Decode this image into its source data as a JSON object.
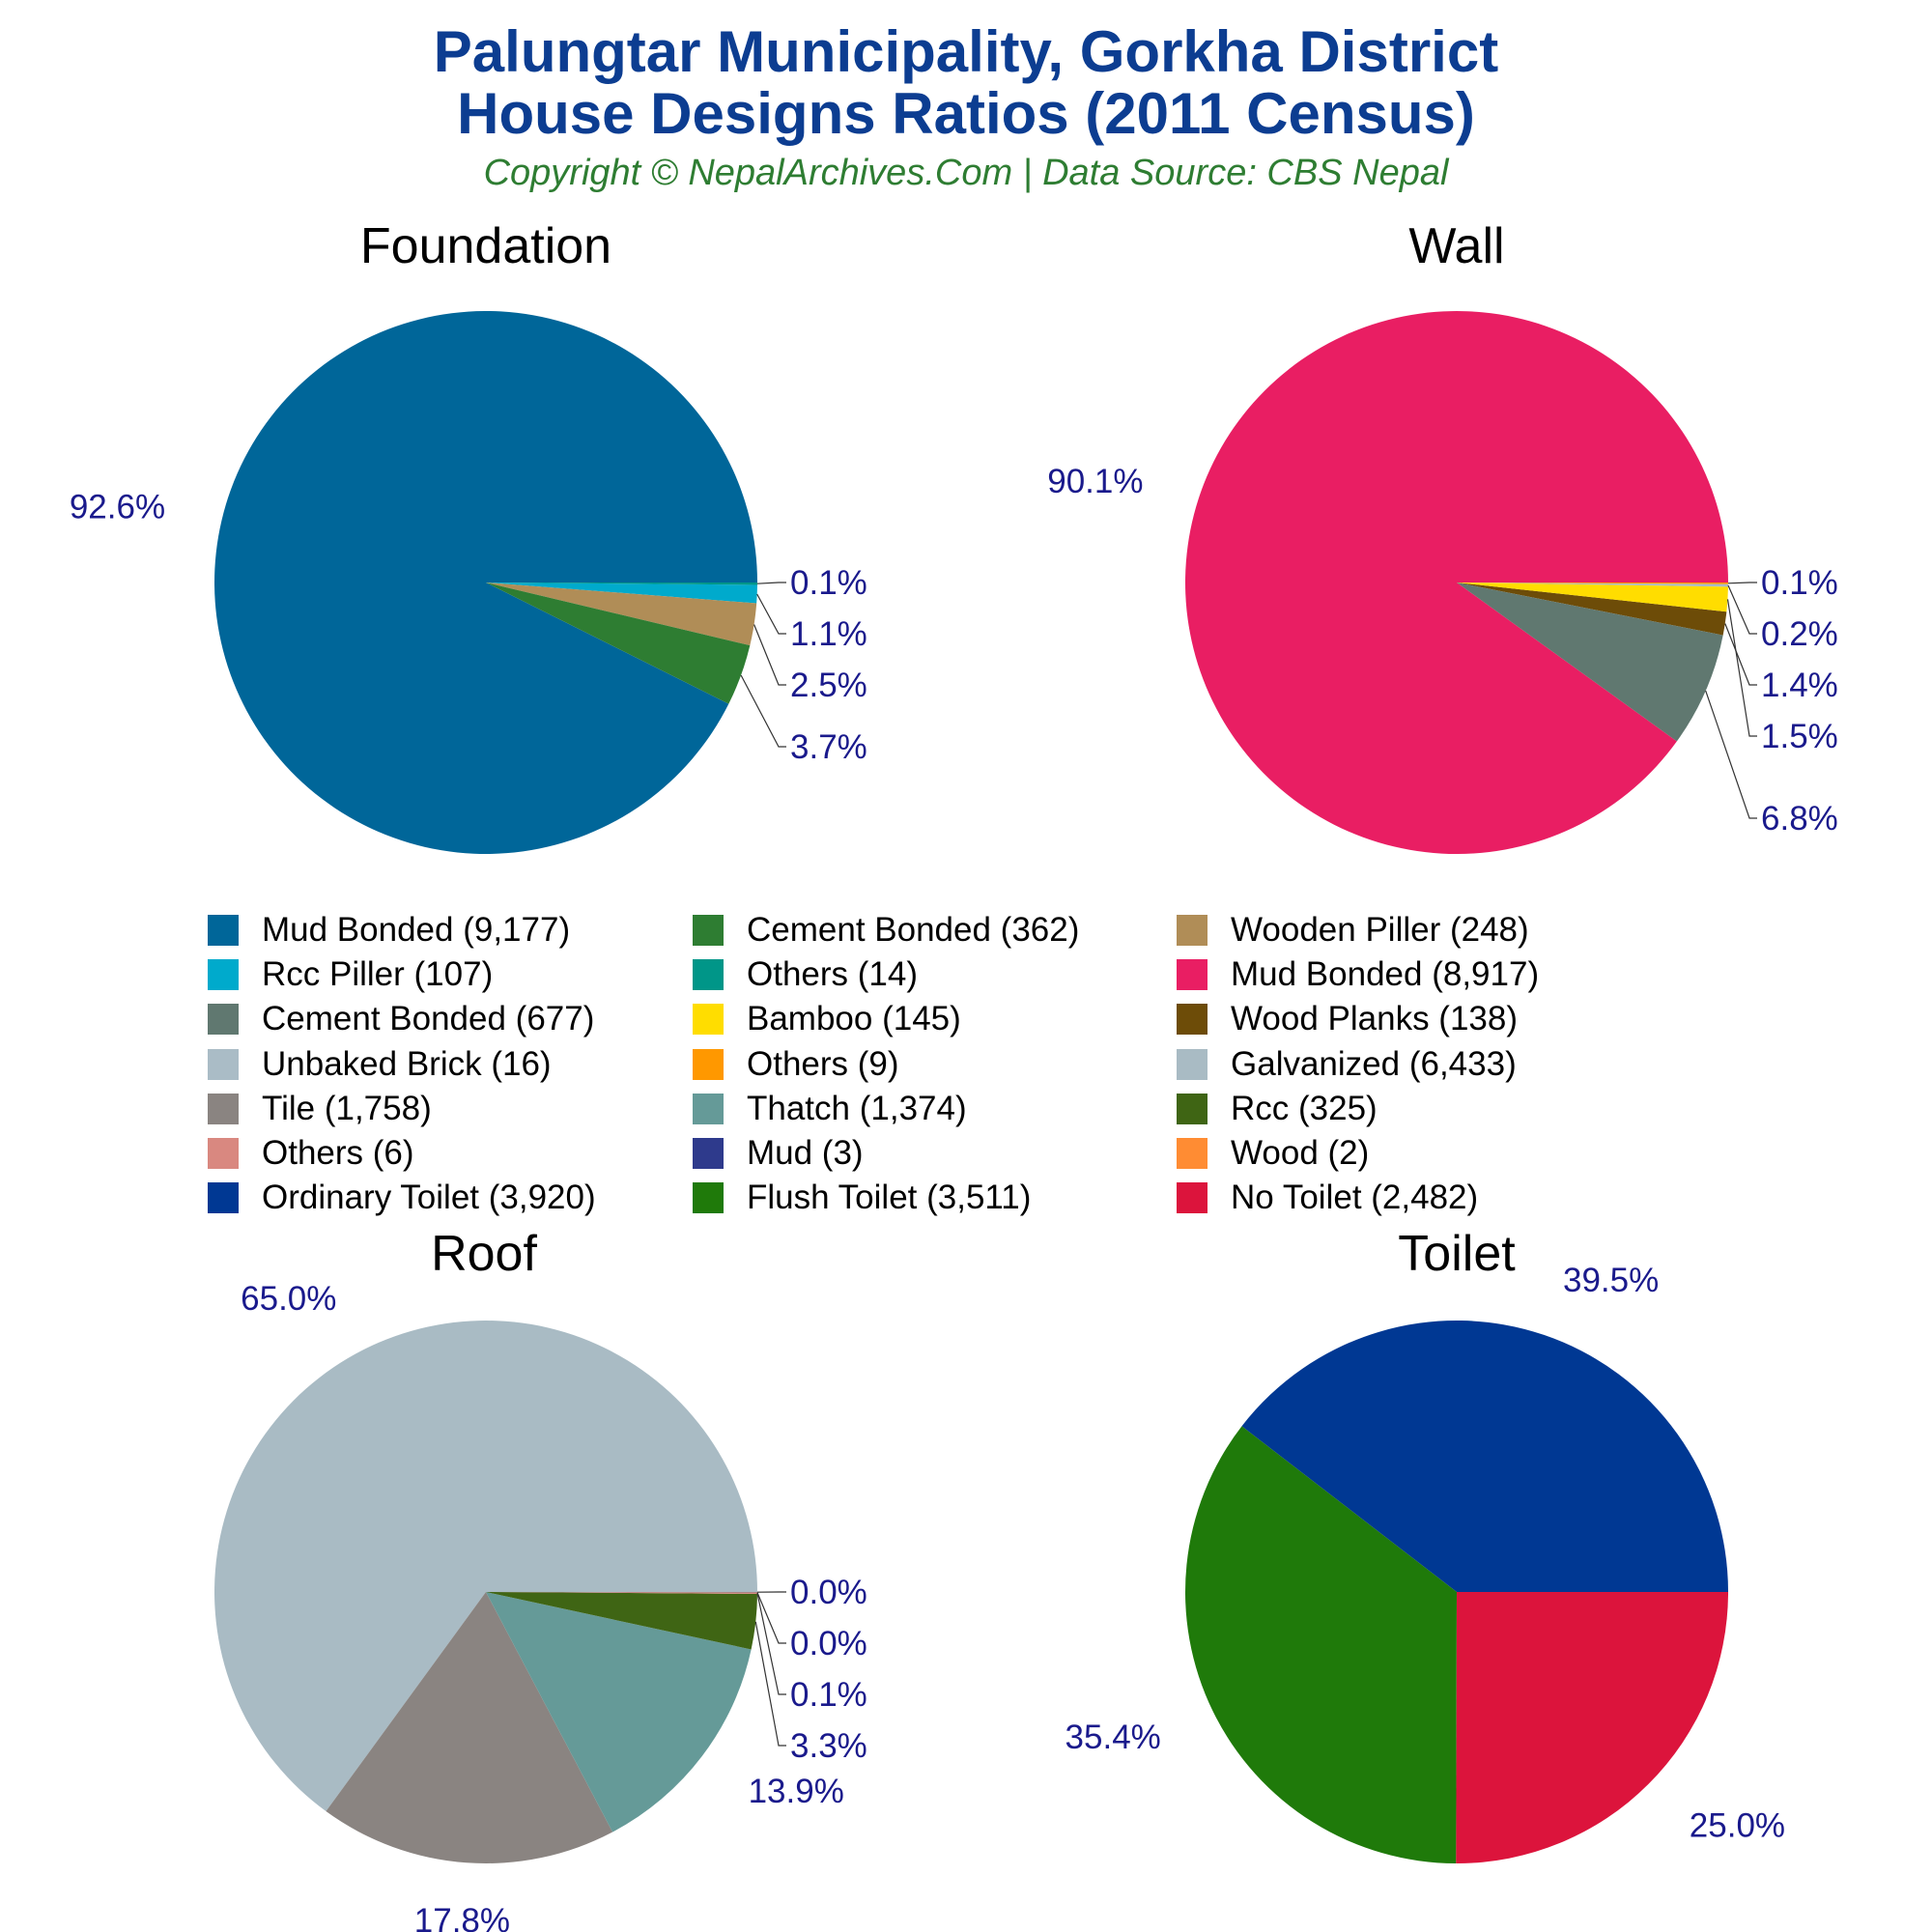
{
  "header": {
    "title_line1": "Palungtar Municipality, Gorkha District",
    "title_line2": "House Designs Ratios (2011 Census)",
    "subtitle": "Copyright © NepalArchives.Com | Data Source: CBS Nepal"
  },
  "chart_data": [
    {
      "type": "pie",
      "title": "Foundation",
      "slices": [
        {
          "label": "Mud Bonded",
          "value": 9177,
          "color": "#006699",
          "pct": "92.6%"
        },
        {
          "label": "Rcc Piller",
          "value": 107,
          "color": "#00aacc",
          "pct": "1.1%"
        },
        {
          "label": "Wooden Piller",
          "value": 248,
          "color": "#b08d57",
          "pct": "2.5%"
        },
        {
          "label": "Cement Bonded",
          "value": 362,
          "color": "#2e7d32",
          "pct": "3.7%"
        },
        {
          "label": "Others",
          "value": 14,
          "color": "#009688",
          "pct": "0.1%"
        }
      ]
    },
    {
      "type": "pie",
      "title": "Wall",
      "slices": [
        {
          "label": "Mud Bonded",
          "value": 8917,
          "color": "#e91e63",
          "pct": "90.1%"
        },
        {
          "label": "Unbaked Brick",
          "value": 16,
          "color": "#aabcc6",
          "pct": "0.2%"
        },
        {
          "label": "Wood Planks",
          "value": 138,
          "color": "#6d4c08",
          "pct": "1.4%"
        },
        {
          "label": "Bamboo",
          "value": 145,
          "color": "#ffdd00",
          "pct": "1.5%"
        },
        {
          "label": "Cement Bonded",
          "value": 677,
          "color": "#607870",
          "pct": "6.8%"
        },
        {
          "label": "Others",
          "value": 9,
          "color": "#ff9800",
          "pct": "0.1%"
        }
      ]
    },
    {
      "type": "pie",
      "title": "Roof",
      "slices": [
        {
          "label": "Galvanized",
          "value": 6433,
          "color": "#a9bbc4",
          "pct": "65.0%"
        },
        {
          "label": "Tile",
          "value": 1758,
          "color": "#8a8481",
          "pct": "17.8%"
        },
        {
          "label": "Thatch",
          "value": 1374,
          "color": "#659a98",
          "pct": "13.9%"
        },
        {
          "label": "Rcc",
          "value": 325,
          "color": "#3f6514",
          "pct": "3.3%"
        },
        {
          "label": "Others",
          "value": 6,
          "color": "#d98880",
          "pct": "0.1%"
        },
        {
          "label": "Mud",
          "value": 3,
          "color": "#2e3a8c",
          "pct": "0.0%"
        },
        {
          "label": "Wood",
          "value": 2,
          "color": "#ff8c33",
          "pct": "0.0%"
        }
      ]
    },
    {
      "type": "pie",
      "title": "Toilet",
      "slices": [
        {
          "label": "Ordinary Toilet",
          "value": 3920,
          "color": "#003893",
          "pct": "39.5%"
        },
        {
          "label": "Flush Toilet",
          "value": 3511,
          "color": "#1f7a0a",
          "pct": "35.4%"
        },
        {
          "label": "No Toilet",
          "value": 2482,
          "color": "#dc143c",
          "pct": "25.0%"
        }
      ]
    }
  ],
  "legend": [
    {
      "text": "Mud Bonded (9,177)",
      "color": "#006699"
    },
    {
      "text": "Cement Bonded (362)",
      "color": "#2e7d32"
    },
    {
      "text": "Wooden Piller (248)",
      "color": "#b08d57"
    },
    {
      "text": "Rcc Piller (107)",
      "color": "#00aacc"
    },
    {
      "text": "Others (14)",
      "color": "#009688"
    },
    {
      "text": "Mud Bonded (8,917)",
      "color": "#e91e63"
    },
    {
      "text": "Cement Bonded (677)",
      "color": "#607870"
    },
    {
      "text": "Bamboo (145)",
      "color": "#ffdd00"
    },
    {
      "text": "Wood Planks (138)",
      "color": "#6d4c08"
    },
    {
      "text": "Unbaked Brick (16)",
      "color": "#aabcc6"
    },
    {
      "text": "Others (9)",
      "color": "#ff9800"
    },
    {
      "text": "Galvanized (6,433)",
      "color": "#a9bbc4"
    },
    {
      "text": "Tile (1,758)",
      "color": "#8a8481"
    },
    {
      "text": "Thatch (1,374)",
      "color": "#659a98"
    },
    {
      "text": "Rcc (325)",
      "color": "#3f6514"
    },
    {
      "text": "Others (6)",
      "color": "#d98880"
    },
    {
      "text": "Mud (3)",
      "color": "#2e3a8c"
    },
    {
      "text": "Wood (2)",
      "color": "#ff8c33"
    },
    {
      "text": "Ordinary Toilet (3,920)",
      "color": "#003893"
    },
    {
      "text": "Flush Toilet (3,511)",
      "color": "#1f7a0a"
    },
    {
      "text": "No Toilet (2,482)",
      "color": "#dc143c"
    }
  ]
}
